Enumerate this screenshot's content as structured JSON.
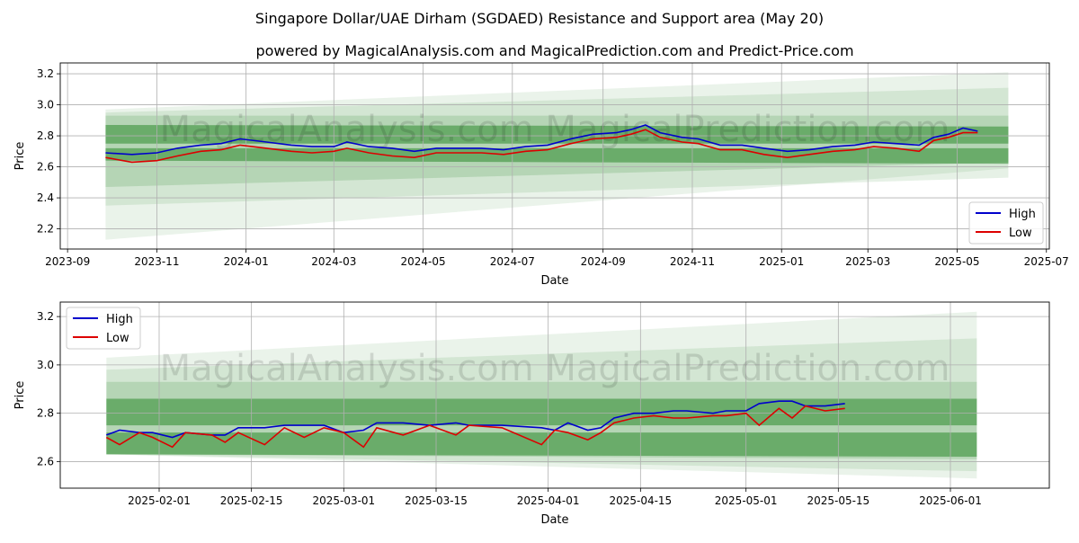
{
  "figure": {
    "title": "Singapore Dollar/UAE Dirham (SGDAED) Resistance and Support area (May 20)",
    "subtitle": "powered by MagicalAnalysis.com and MagicalPrediction.com and Predict-Price.com",
    "watermark": "MagicalAnalysis.com   MagicalPrediction.com",
    "colors": {
      "high": "#0000cc",
      "low": "#dd0000",
      "band": "#2e8b2e",
      "grid": "#b0b0b0"
    }
  },
  "chart_data": [
    {
      "type": "line",
      "xlabel": "Date",
      "ylabel": "Price",
      "xlim": [
        "2023-08-27",
        "2025-07-03"
      ],
      "ylim": [
        2.07,
        3.27
      ],
      "xticks": [
        "2023-09",
        "2023-11",
        "2024-01",
        "2024-03",
        "2024-05",
        "2024-07",
        "2024-09",
        "2024-11",
        "2025-01",
        "2025-03",
        "2025-05",
        "2025-07"
      ],
      "yticks": [
        "2.2",
        "2.4",
        "2.6",
        "2.8",
        "3.0",
        "3.2"
      ],
      "legend": "bottom-right",
      "grid": true,
      "band_x": [
        "2023-09-27",
        "2025-06-05"
      ],
      "bands": [
        {
          "start": [
            2.87,
            2.75
          ],
          "end": [
            2.86,
            2.75
          ],
          "opacity": 0.55
        },
        {
          "start": [
            2.72,
            2.64
          ],
          "end": [
            2.72,
            2.62
          ],
          "opacity": 0.55
        },
        {
          "start": [
            2.93,
            2.47
          ],
          "end": [
            2.93,
            2.63
          ],
          "opacity": 0.18
        },
        {
          "start": [
            2.95,
            2.35
          ],
          "end": [
            3.11,
            2.53
          ],
          "opacity": 0.12
        },
        {
          "start": [
            2.97,
            2.13
          ],
          "end": [
            3.21,
            2.59
          ],
          "opacity": 0.1
        }
      ],
      "series": [
        {
          "name": "High",
          "x": [
            "2023-09-27",
            "2023-10-15",
            "2023-11-01",
            "2023-11-15",
            "2023-12-01",
            "2023-12-15",
            "2023-12-28",
            "2024-01-15",
            "2024-02-01",
            "2024-02-15",
            "2024-03-01",
            "2024-03-10",
            "2024-03-25",
            "2024-04-10",
            "2024-04-25",
            "2024-05-10",
            "2024-05-25",
            "2024-06-10",
            "2024-06-25",
            "2024-07-10",
            "2024-07-25",
            "2024-08-10",
            "2024-08-25",
            "2024-09-10",
            "2024-09-20",
            "2024-09-30",
            "2024-10-10",
            "2024-10-25",
            "2024-11-05",
            "2024-11-20",
            "2024-12-05",
            "2024-12-20",
            "2025-01-05",
            "2025-01-20",
            "2025-02-05",
            "2025-02-20",
            "2025-03-05",
            "2025-03-20",
            "2025-04-05",
            "2025-04-15",
            "2025-04-25",
            "2025-05-05",
            "2025-05-15"
          ],
          "y": [
            2.69,
            2.68,
            2.69,
            2.72,
            2.74,
            2.75,
            2.78,
            2.76,
            2.74,
            2.73,
            2.73,
            2.76,
            2.73,
            2.72,
            2.7,
            2.72,
            2.72,
            2.72,
            2.71,
            2.73,
            2.74,
            2.78,
            2.81,
            2.82,
            2.84,
            2.87,
            2.82,
            2.79,
            2.78,
            2.74,
            2.74,
            2.72,
            2.7,
            2.71,
            2.73,
            2.74,
            2.76,
            2.75,
            2.74,
            2.79,
            2.81,
            2.85,
            2.83
          ]
        },
        {
          "name": "Low",
          "x": [
            "2023-09-27",
            "2023-10-15",
            "2023-11-01",
            "2023-11-15",
            "2023-12-01",
            "2023-12-15",
            "2023-12-28",
            "2024-01-15",
            "2024-02-01",
            "2024-02-15",
            "2024-03-01",
            "2024-03-10",
            "2024-03-25",
            "2024-04-10",
            "2024-04-25",
            "2024-05-10",
            "2024-05-25",
            "2024-06-10",
            "2024-06-25",
            "2024-07-10",
            "2024-07-25",
            "2024-08-10",
            "2024-08-25",
            "2024-09-10",
            "2024-09-20",
            "2024-09-30",
            "2024-10-10",
            "2024-10-25",
            "2024-11-05",
            "2024-11-20",
            "2024-12-05",
            "2024-12-20",
            "2025-01-05",
            "2025-01-20",
            "2025-02-05",
            "2025-02-20",
            "2025-03-05",
            "2025-03-20",
            "2025-04-05",
            "2025-04-15",
            "2025-04-25",
            "2025-05-05",
            "2025-05-15"
          ],
          "y": [
            2.66,
            2.63,
            2.64,
            2.67,
            2.7,
            2.71,
            2.74,
            2.72,
            2.7,
            2.69,
            2.7,
            2.72,
            2.69,
            2.67,
            2.66,
            2.69,
            2.69,
            2.69,
            2.68,
            2.7,
            2.71,
            2.75,
            2.78,
            2.79,
            2.81,
            2.84,
            2.79,
            2.76,
            2.75,
            2.71,
            2.71,
            2.68,
            2.66,
            2.68,
            2.7,
            2.71,
            2.73,
            2.72,
            2.7,
            2.77,
            2.79,
            2.82,
            2.82
          ]
        }
      ]
    },
    {
      "type": "line",
      "xlabel": "Date",
      "ylabel": "Price",
      "xlim": [
        "2025-01-17",
        "2025-06-16"
      ],
      "ylim": [
        2.49,
        3.26
      ],
      "xticks": [
        "2025-02-01",
        "2025-02-15",
        "2025-03-01",
        "2025-03-15",
        "2025-04-01",
        "2025-04-15",
        "2025-05-01",
        "2025-05-15",
        "2025-06-01"
      ],
      "yticks": [
        "2.6",
        "2.8",
        "3.0",
        "3.2"
      ],
      "legend": "top-left",
      "grid": true,
      "band_x": [
        "2025-01-24",
        "2025-06-05"
      ],
      "bands": [
        {
          "start": [
            2.86,
            2.75
          ],
          "end": [
            2.86,
            2.75
          ],
          "opacity": 0.55
        },
        {
          "start": [
            2.72,
            2.63
          ],
          "end": [
            2.72,
            2.62
          ],
          "opacity": 0.55
        },
        {
          "start": [
            2.93,
            2.63
          ],
          "end": [
            2.93,
            2.61
          ],
          "opacity": 0.18
        },
        {
          "start": [
            2.98,
            2.63
          ],
          "end": [
            3.11,
            2.56
          ],
          "opacity": 0.12
        },
        {
          "start": [
            3.03,
            2.63
          ],
          "end": [
            3.22,
            2.53
          ],
          "opacity": 0.1
        }
      ],
      "series": [
        {
          "name": "High",
          "x": [
            "2025-01-24",
            "2025-01-26",
            "2025-01-29",
            "2025-01-31",
            "2025-02-03",
            "2025-02-05",
            "2025-02-09",
            "2025-02-11",
            "2025-02-13",
            "2025-02-17",
            "2025-02-20",
            "2025-02-23",
            "2025-02-26",
            "2025-03-01",
            "2025-03-04",
            "2025-03-06",
            "2025-03-10",
            "2025-03-14",
            "2025-03-18",
            "2025-03-20",
            "2025-03-25",
            "2025-03-31",
            "2025-04-02",
            "2025-04-04",
            "2025-04-07",
            "2025-04-09",
            "2025-04-11",
            "2025-04-14",
            "2025-04-17",
            "2025-04-20",
            "2025-04-22",
            "2025-04-26",
            "2025-04-28",
            "2025-05-01",
            "2025-05-03",
            "2025-05-06",
            "2025-05-08",
            "2025-05-10",
            "2025-05-13",
            "2025-05-16"
          ],
          "y": [
            2.71,
            2.73,
            2.72,
            2.72,
            2.7,
            2.72,
            2.71,
            2.71,
            2.74,
            2.74,
            2.75,
            2.75,
            2.75,
            2.72,
            2.73,
            2.76,
            2.76,
            2.75,
            2.76,
            2.75,
            2.75,
            2.74,
            2.73,
            2.76,
            2.73,
            2.74,
            2.78,
            2.8,
            2.8,
            2.81,
            2.81,
            2.8,
            2.81,
            2.81,
            2.84,
            2.85,
            2.85,
            2.83,
            2.83,
            2.84
          ]
        },
        {
          "name": "Low",
          "x": [
            "2025-01-24",
            "2025-01-26",
            "2025-01-29",
            "2025-01-31",
            "2025-02-03",
            "2025-02-05",
            "2025-02-09",
            "2025-02-11",
            "2025-02-13",
            "2025-02-17",
            "2025-02-20",
            "2025-02-23",
            "2025-02-26",
            "2025-03-01",
            "2025-03-04",
            "2025-03-06",
            "2025-03-10",
            "2025-03-14",
            "2025-03-18",
            "2025-03-20",
            "2025-03-25",
            "2025-03-31",
            "2025-04-02",
            "2025-04-04",
            "2025-04-07",
            "2025-04-09",
            "2025-04-11",
            "2025-04-14",
            "2025-04-17",
            "2025-04-20",
            "2025-04-22",
            "2025-04-26",
            "2025-04-28",
            "2025-05-01",
            "2025-05-03",
            "2025-05-06",
            "2025-05-08",
            "2025-05-10",
            "2025-05-13",
            "2025-05-16"
          ],
          "y": [
            2.7,
            2.67,
            2.72,
            2.7,
            2.66,
            2.72,
            2.71,
            2.68,
            2.72,
            2.67,
            2.74,
            2.7,
            2.74,
            2.72,
            2.66,
            2.74,
            2.71,
            2.75,
            2.71,
            2.75,
            2.74,
            2.67,
            2.73,
            2.72,
            2.69,
            2.72,
            2.76,
            2.78,
            2.79,
            2.78,
            2.78,
            2.79,
            2.79,
            2.8,
            2.75,
            2.82,
            2.78,
            2.83,
            2.81,
            2.82
          ]
        }
      ]
    }
  ]
}
